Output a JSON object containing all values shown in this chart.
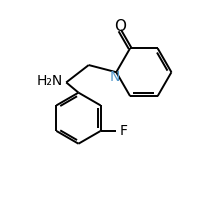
{
  "background_color": "#ffffff",
  "line_color": "#000000",
  "font_size": 10,
  "O_label": "O",
  "N_label": "N",
  "F_label": "F",
  "H2N_label": "H₂N",
  "figsize": [
    2.06,
    2.2
  ],
  "dpi": 100,
  "xlim": [
    0,
    10
  ],
  "ylim": [
    0,
    10.7
  ]
}
